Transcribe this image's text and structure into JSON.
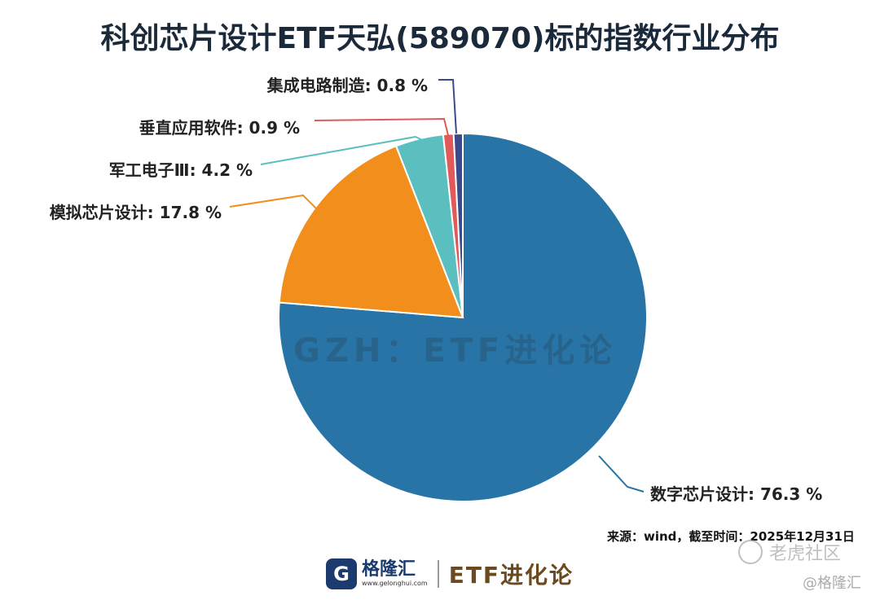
{
  "chart_data": {
    "type": "pie",
    "title": "科创芯片设计ETF天弘(589070)标的指数行业分布",
    "slices": [
      {
        "name": "数字芯片设计",
        "value": 76.3,
        "label": "数字芯片设计: 76.3 %",
        "color": "#2874a6"
      },
      {
        "name": "模拟芯片设计",
        "value": 17.8,
        "label": "模拟芯片设计: 17.8 %",
        "color": "#f28e1c"
      },
      {
        "name": "军工电子Ⅲ",
        "value": 4.2,
        "label": "军工电子Ⅲ: 4.2 %",
        "color": "#5bbfc0"
      },
      {
        "name": "垂直应用软件",
        "value": 0.9,
        "label": "垂直应用软件: 0.9 %",
        "color": "#e05a5a"
      },
      {
        "name": "集成电路制造",
        "value": 0.8,
        "label": "集成电路制造: 0.8 %",
        "color": "#3a4a8c"
      }
    ]
  },
  "watermark": "GZH：ETF进化论",
  "source": "来源：wind，截至时间：2025年12月31日",
  "footer": {
    "logo_glyph": "G",
    "logo_name": "格隆汇",
    "logo_url": "www.gelonghui.com",
    "brand": "ETF进化论"
  },
  "overlay": {
    "community": "老虎社区",
    "handle": "@格隆汇"
  }
}
